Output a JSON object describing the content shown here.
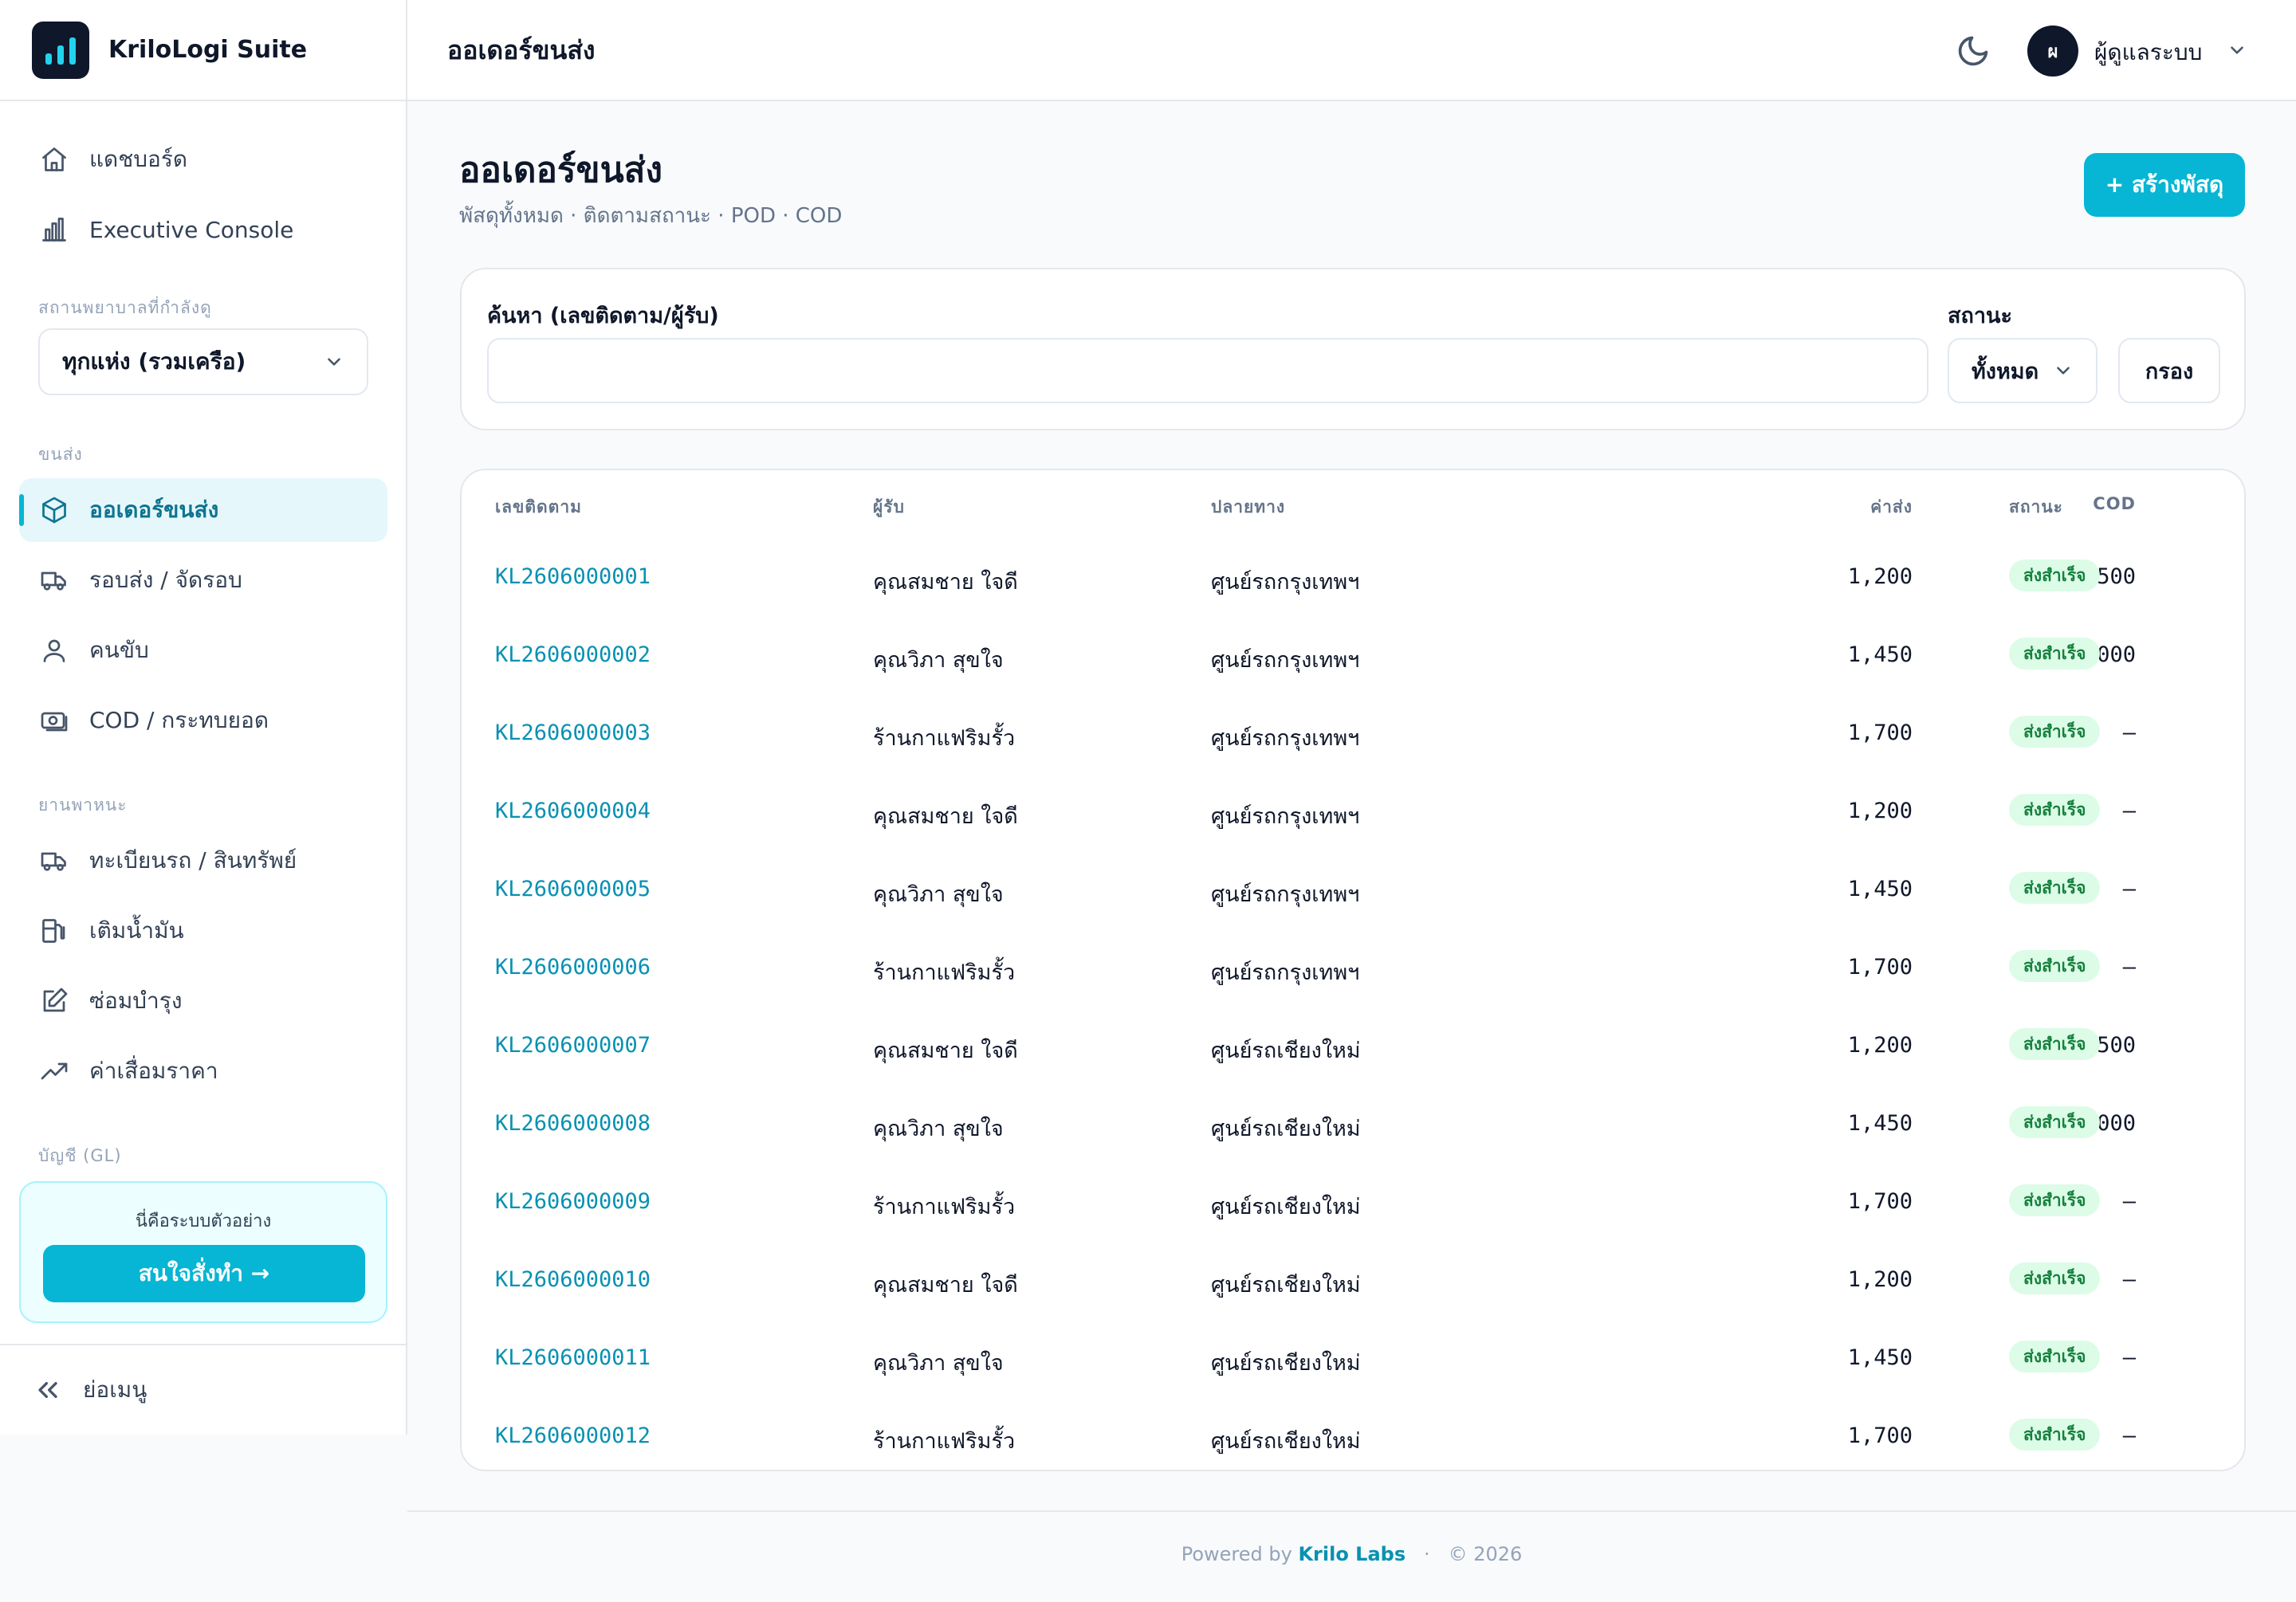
{
  "brand": {
    "name": "KriloLogi Suite"
  },
  "topbar": {
    "title": "ออเดอร์ขนส่ง",
    "avatar_initial": "ผ",
    "user_name": "ผู้ดูแลระบบ"
  },
  "sidebar": {
    "top_items": [
      {
        "label": "แดชบอร์ด",
        "icon": "home-icon"
      },
      {
        "label": "Executive Console",
        "icon": "bar-chart-icon"
      }
    ],
    "site_label": "สถานพยาบาลที่กำลังดู",
    "site_value": "ทุกแห่ง (รวมเครือ)",
    "section_transport": "ขนส่ง",
    "transport_items": [
      {
        "label": "ออเดอร์ขนส่ง",
        "icon": "package-icon",
        "active": true
      },
      {
        "label": "รอบส่ง / จัดรอบ",
        "icon": "truck-icon"
      },
      {
        "label": "คนขับ",
        "icon": "user-icon"
      },
      {
        "label": "COD / กระทบยอด",
        "icon": "cash-icon"
      }
    ],
    "section_vehicle": "ยานพาหนะ",
    "vehicle_items": [
      {
        "label": "ทะเบียนรถ / สินทรัพย์",
        "icon": "truck-icon"
      },
      {
        "label": "เติมน้ำมัน",
        "icon": "fuel-icon"
      },
      {
        "label": "ซ่อมบำรุง",
        "icon": "edit-icon"
      },
      {
        "label": "ค่าเสื่อมราคา",
        "icon": "trend-icon"
      }
    ],
    "section_gl": "บัญชี (GL)",
    "demo_text": "นี่คือระบบตัวอย่าง",
    "demo_button": "สนใจสั่งทำ →",
    "collapse_label": "ย่อเมนู"
  },
  "page": {
    "title": "ออเดอร์ขนส่ง",
    "subtitle": "พัสดุทั้งหมด · ติดตามสถานะ · POD · COD",
    "create_button": "+ สร้างพัสดุ"
  },
  "filter": {
    "search_label": "ค้นหา (เลขติดตาม/ผู้รับ)",
    "search_value": "",
    "status_label": "สถานะ",
    "status_value": "ทั้งหมด",
    "filter_button": "กรอง"
  },
  "table": {
    "headers": {
      "tracking": "เลขติดตาม",
      "recipient": "ผู้รับ",
      "destination": "ปลายทาง",
      "fee": "ค่าส่ง",
      "cod": "COD",
      "status": "สถานะ"
    },
    "rows": [
      {
        "tracking": "KL2606000001",
        "recipient": "คุณสมชาย ใจดี",
        "destination": "ศูนย์รถกรุงเทพฯ",
        "fee": "1,200",
        "cod": "1,500",
        "status": "ส่งสำเร็จ"
      },
      {
        "tracking": "KL2606000002",
        "recipient": "คุณวิภา สุขใจ",
        "destination": "ศูนย์รถกรุงเทพฯ",
        "fee": "1,450",
        "cod": "2,000",
        "status": "ส่งสำเร็จ"
      },
      {
        "tracking": "KL2606000003",
        "recipient": "ร้านกาแฟริมรั้ว",
        "destination": "ศูนย์รถกรุงเทพฯ",
        "fee": "1,700",
        "cod": "—",
        "status": "ส่งสำเร็จ"
      },
      {
        "tracking": "KL2606000004",
        "recipient": "คุณสมชาย ใจดี",
        "destination": "ศูนย์รถกรุงเทพฯ",
        "fee": "1,200",
        "cod": "—",
        "status": "ส่งสำเร็จ"
      },
      {
        "tracking": "KL2606000005",
        "recipient": "คุณวิภา สุขใจ",
        "destination": "ศูนย์รถกรุงเทพฯ",
        "fee": "1,450",
        "cod": "—",
        "status": "ส่งสำเร็จ"
      },
      {
        "tracking": "KL2606000006",
        "recipient": "ร้านกาแฟริมรั้ว",
        "destination": "ศูนย์รถกรุงเทพฯ",
        "fee": "1,700",
        "cod": "—",
        "status": "ส่งสำเร็จ"
      },
      {
        "tracking": "KL2606000007",
        "recipient": "คุณสมชาย ใจดี",
        "destination": "ศูนย์รถเชียงใหม่",
        "fee": "1,200",
        "cod": "1,500",
        "status": "ส่งสำเร็จ"
      },
      {
        "tracking": "KL2606000008",
        "recipient": "คุณวิภา สุขใจ",
        "destination": "ศูนย์รถเชียงใหม่",
        "fee": "1,450",
        "cod": "2,000",
        "status": "ส่งสำเร็จ"
      },
      {
        "tracking": "KL2606000009",
        "recipient": "ร้านกาแฟริมรั้ว",
        "destination": "ศูนย์รถเชียงใหม่",
        "fee": "1,700",
        "cod": "—",
        "status": "ส่งสำเร็จ"
      },
      {
        "tracking": "KL2606000010",
        "recipient": "คุณสมชาย ใจดี",
        "destination": "ศูนย์รถเชียงใหม่",
        "fee": "1,200",
        "cod": "—",
        "status": "ส่งสำเร็จ"
      },
      {
        "tracking": "KL2606000011",
        "recipient": "คุณวิภา สุขใจ",
        "destination": "ศูนย์รถเชียงใหม่",
        "fee": "1,450",
        "cod": "—",
        "status": "ส่งสำเร็จ"
      },
      {
        "tracking": "KL2606000012",
        "recipient": "ร้านกาแฟริมรั้ว",
        "destination": "ศูนย์รถเชียงใหม่",
        "fee": "1,700",
        "cod": "—",
        "status": "ส่งสำเร็จ"
      }
    ]
  },
  "footer": {
    "powered_by": "Powered by",
    "company": "Krilo Labs",
    "separator": "·",
    "copyright": "© 2026"
  },
  "colors": {
    "accent": "#06b6d4",
    "accent_dark": "#0891b2",
    "success_bg": "#dcfce7",
    "success_text": "#15803d"
  }
}
